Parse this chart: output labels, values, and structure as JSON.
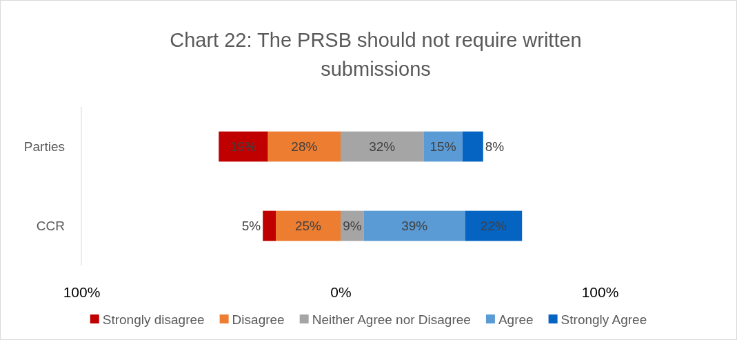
{
  "chart_data": {
    "type": "bar",
    "orientation": "horizontal",
    "title": "Chart 22: The PRSB should not require written submissions",
    "categories": [
      "Parties",
      "CCR"
    ],
    "series": [
      {
        "name": "Strongly disagree",
        "color": "#c00000",
        "values": [
          19,
          5
        ],
        "base": [
          -47,
          -30
        ],
        "value_labels": [
          "19%",
          "5%"
        ]
      },
      {
        "name": "Disagree",
        "color": "#ed7d31",
        "values": [
          28,
          25
        ],
        "base": [
          -28,
          -25
        ],
        "value_labels": [
          "28%",
          "25%"
        ]
      },
      {
        "name": "Neither Agree nor Disagree",
        "color": "#a5a5a5",
        "values": [
          32,
          9
        ],
        "base": [
          0,
          0
        ],
        "value_labels": [
          "32%",
          "9%"
        ]
      },
      {
        "name": "Agree",
        "color": "#5b9bd5",
        "values": [
          15,
          39
        ],
        "base": [
          32,
          9
        ],
        "value_labels": [
          "15%",
          "39%"
        ]
      },
      {
        "name": "Strongly Agree",
        "color": "#0563c1",
        "values": [
          8,
          22
        ],
        "base": [
          47,
          48
        ],
        "value_labels": [
          "8%",
          "22%"
        ]
      }
    ],
    "xlim": [
      -100,
      100
    ],
    "xticks": [
      {
        "value": -100,
        "label": "100%"
      },
      {
        "value": 0,
        "label": "0%"
      },
      {
        "value": 100,
        "label": "100%"
      }
    ],
    "grid": false,
    "legend": "bottom"
  }
}
